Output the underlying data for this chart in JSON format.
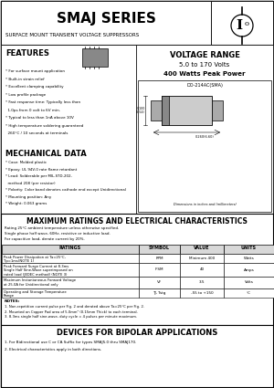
{
  "title": "SMAJ SERIES",
  "subtitle": "SURFACE MOUNT TRANSIENT VOLTAGE SUPPRESSORS",
  "voltage_range_title": "VOLTAGE RANGE",
  "voltage_range": "5.0 to 170 Volts",
  "power": "400 Watts Peak Power",
  "package": "DO-214AC(SMA)",
  "features_title": "FEATURES",
  "features": [
    "* For surface mount application",
    "* Built-in strain relief",
    "* Excellent clamping capability",
    "* Low profile package",
    "* Fast response time: Typically less than",
    "  1.0ps from 0 volt to 6V min.",
    "* Typical to less than 1nA above 10V",
    "* High temperature soldering guaranteed",
    "  260°C / 10 seconds at terminals"
  ],
  "mech_title": "MECHANICAL DATA",
  "mech": [
    "* Case: Molded plastic",
    "* Epoxy: UL 94V-0 rate flame retardant",
    "* Lead: Solderable per MIL-STD-202,",
    "  method 208 (per resistor)",
    "* Polarity: Color band denotes cathode end except Unidirectional",
    "* Mounting position: Any",
    "* Weight: 0.063 grams"
  ],
  "max_ratings_title": "MAXIMUM RATINGS AND ELECTRICAL CHARACTERISTICS",
  "ratings_note1": "Rating 25°C ambient temperature unless otherwise specified.",
  "ratings_note2": "Single phase half wave, 60Hz, resistive or inductive load.",
  "ratings_note3": "For capacitive load, derate current by 20%.",
  "table_headers": [
    "RATINGS",
    "SYMBOL",
    "VALUE",
    "UNITS"
  ],
  "table_rows": [
    [
      "Peak Power Dissipation at Ta=25°C, Tp=1ms(NOTE 1)",
      "PPM",
      "Minimum 400",
      "Watts"
    ],
    [
      "Peak Forward Surge Current at 8.3ms Single Half Sine-Wave superimposed on rated load (JEDEC method) (NOTE 3)",
      "IFSM",
      "40",
      "Amps"
    ],
    [
      "Maximum Instantaneous Forward Voltage at 25.0A for Unidirectional only",
      "VF",
      "3.5",
      "Volts"
    ],
    [
      "Operating and Storage Temperature Range",
      "TJ, Tstg",
      "-55 to +150",
      "°C"
    ]
  ],
  "notes_title": "NOTES:",
  "notes": [
    "1. Non-repetition current pulse per Fig. 2 and derated above Ta=25°C per Fig. 2.",
    "2. Mounted on Copper Pad area of 5.0mm² (0.15mm Thick) to each terminal.",
    "3. 8.3ms single half sine-wave, duty cycle = 4 pulses per minute maximum."
  ],
  "bipolar_title": "DEVICES FOR BIPOLAR APPLICATIONS",
  "bipolar": [
    "1. For Bidirectional use C or CA Suffix for types SMAJ5.0 thru SMAJ170.",
    "2. Electrical characteristics apply in both directions."
  ],
  "bg_color": "#ffffff"
}
